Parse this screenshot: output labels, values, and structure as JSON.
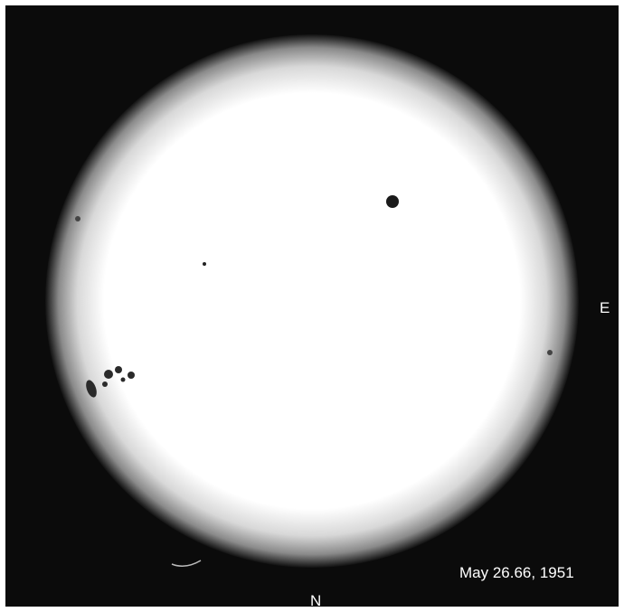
{
  "labels": {
    "east": "E",
    "north": "N",
    "date": "May 26.66, 1951"
  }
}
